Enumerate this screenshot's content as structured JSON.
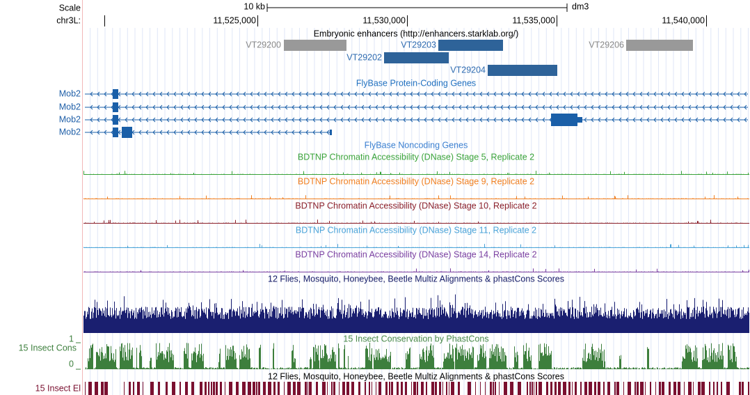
{
  "ruler": {
    "scale": "Scale",
    "size": "10 kb",
    "assembly": "dm3",
    "chrom": "chr3L:",
    "ticks": [
      "11,525,000",
      "11,530,000",
      "11,535,000",
      "11,540,000"
    ]
  },
  "enhancers": {
    "title": "Embryonic enhancers (http://enhancers.starklab.org/)",
    "items": [
      "VT29200",
      "VT29203",
      "VT29202",
      "VT29204",
      "VT29206"
    ]
  },
  "genes": {
    "title": "FlyBase Protein-Coding Genes",
    "names": [
      "Mob2",
      "Mob2",
      "Mob2",
      "Mob2"
    ]
  },
  "noncoding": {
    "title": "FlyBase Noncoding Genes"
  },
  "dnase": [
    "BDTNP Chromatin Accessibility (DNase) Stage 5, Replicate 2",
    "BDTNP Chromatin Accessibility (DNase) Stage 9, Replicate 2",
    "BDTNP Chromatin Accessibility (DNase) Stage 10, Replicate 2",
    "BDTNP Chromatin Accessibility (DNase) Stage 11, Replicate 2",
    "BDTNP Chromatin Accessibility (DNase) Stage 14, Replicate 2"
  ],
  "multiz": {
    "title": "12 Flies, Mosquito, Honeybee, Beetle Multiz Alignments & phastCons Scores"
  },
  "conservation": {
    "title": "15 Insect Conservation by PhastCons",
    "label": "15 Insect Cons",
    "max": "1",
    "min": "0"
  },
  "elements": {
    "title": "12 Flies, Mosquito, Honeybee, Beetle Multiz Alignments & phastCons Scores",
    "label": "15 Insect El"
  }
}
